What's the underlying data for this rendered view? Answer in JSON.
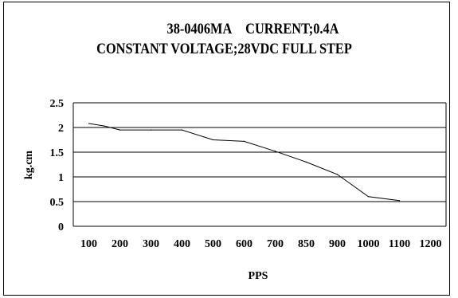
{
  "chart_data": {
    "type": "line",
    "title": "38-0406MA CURRENT;0.4A",
    "subtitle": "CONSTANT VOLTAGE;28VDC FULL STEP",
    "xlabel": "PPS",
    "ylabel": "kg.cm",
    "categories": [
      "100",
      "200",
      "300",
      "400",
      "500",
      "600",
      "700",
      "850",
      "900",
      "1000",
      "1100",
      "1200"
    ],
    "ylim": [
      0,
      2.5
    ],
    "yticks": [
      "0",
      "0.5",
      "1",
      "1.5",
      "2",
      "2.5"
    ],
    "grid": "horizontal",
    "legend": "none",
    "line_color": "#000000",
    "series": [
      {
        "x": [
          0,
          0.5,
          1,
          2,
          3,
          4,
          5,
          6,
          7,
          8,
          9,
          10
        ],
        "y": [
          2.08,
          2.03,
          1.95,
          1.95,
          1.95,
          1.75,
          1.72,
          1.52,
          1.3,
          1.05,
          0.6,
          0.52
        ]
      }
    ]
  }
}
